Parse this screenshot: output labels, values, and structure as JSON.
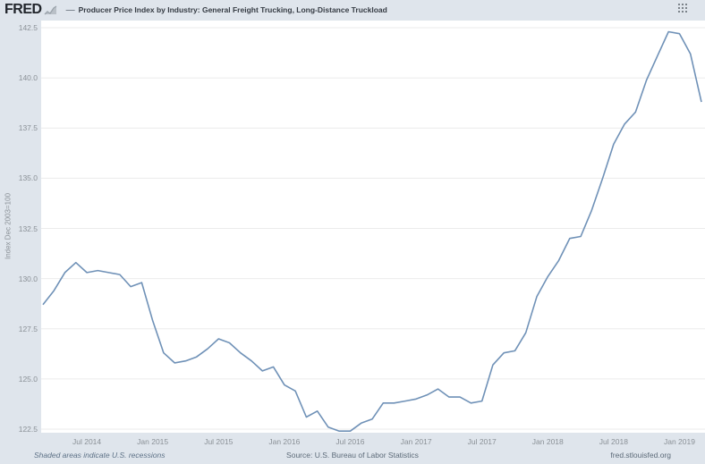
{
  "header": {
    "logo": "FRED",
    "legend_dash": "—",
    "series_title": "Producer Price Index by Industry: General Freight Trucking, Long-Distance Truckload"
  },
  "footer": {
    "recession_note": "Shaded areas indicate U.S. recessions",
    "source": "Source: U.S. Bureau of Labor Statistics",
    "site": "fred.stlouisfed.org"
  },
  "chart_data": {
    "type": "line",
    "title": "Producer Price Index by Industry: General Freight Trucking, Long-Distance Truckload",
    "xlabel": "",
    "ylabel": "Index Dec 2003=100",
    "ylim": [
      122.5,
      142.5
    ],
    "grid": true,
    "legend_position": "top",
    "line_color": "#6f91b7",
    "frequency": "monthly",
    "yticks": [
      {
        "value": 142.5,
        "label": "142.5"
      },
      {
        "value": 140.0,
        "label": "140.0"
      },
      {
        "value": 137.5,
        "label": "137.5"
      },
      {
        "value": 135.0,
        "label": "135.0"
      },
      {
        "value": 132.5,
        "label": "132.5"
      },
      {
        "value": 130.0,
        "label": "130.0"
      },
      {
        "value": 127.5,
        "label": "127.5"
      },
      {
        "value": 125.0,
        "label": "125.0"
      },
      {
        "value": 122.5,
        "label": "122.5"
      }
    ],
    "xticks": [
      {
        "index": 4,
        "label": "Jul 2014"
      },
      {
        "index": 10,
        "label": "Jan 2015"
      },
      {
        "index": 16,
        "label": "Jul 2015"
      },
      {
        "index": 22,
        "label": "Jan 2016"
      },
      {
        "index": 28,
        "label": "Jul 2016"
      },
      {
        "index": 34,
        "label": "Jan 2017"
      },
      {
        "index": 40,
        "label": "Jul 2017"
      },
      {
        "index": 46,
        "label": "Jan 2018"
      },
      {
        "index": 52,
        "label": "Jul 2018"
      },
      {
        "index": 58,
        "label": "Jan 2019"
      }
    ],
    "x": [
      "2014-03",
      "2014-04",
      "2014-05",
      "2014-06",
      "2014-07",
      "2014-08",
      "2014-09",
      "2014-10",
      "2014-11",
      "2014-12",
      "2015-01",
      "2015-02",
      "2015-03",
      "2015-04",
      "2015-05",
      "2015-06",
      "2015-07",
      "2015-08",
      "2015-09",
      "2015-10",
      "2015-11",
      "2015-12",
      "2016-01",
      "2016-02",
      "2016-03",
      "2016-04",
      "2016-05",
      "2016-06",
      "2016-07",
      "2016-08",
      "2016-09",
      "2016-10",
      "2016-11",
      "2016-12",
      "2017-01",
      "2017-02",
      "2017-03",
      "2017-04",
      "2017-05",
      "2017-06",
      "2017-07",
      "2017-08",
      "2017-09",
      "2017-10",
      "2017-11",
      "2017-12",
      "2018-01",
      "2018-02",
      "2018-03",
      "2018-04",
      "2018-05",
      "2018-06",
      "2018-07",
      "2018-08",
      "2018-09",
      "2018-10",
      "2018-11",
      "2018-12",
      "2019-01",
      "2019-02",
      "2019-03"
    ],
    "series": [
      {
        "name": "Producer Price Index by Industry: General Freight Trucking, Long-Distance Truckload",
        "values": [
          128.7,
          129.4,
          130.3,
          130.8,
          130.3,
          130.4,
          130.3,
          130.2,
          129.6,
          129.8,
          127.9,
          126.3,
          125.8,
          125.9,
          126.1,
          126.5,
          127.0,
          126.8,
          126.3,
          125.9,
          125.4,
          125.6,
          124.7,
          124.4,
          123.1,
          123.4,
          122.6,
          122.4,
          122.4,
          122.8,
          123.0,
          123.8,
          123.8,
          123.9,
          124.0,
          124.2,
          124.5,
          124.1,
          124.1,
          123.8,
          123.9,
          125.7,
          126.3,
          126.4,
          127.3,
          129.1,
          130.1,
          130.9,
          132.0,
          132.1,
          133.4,
          135.0,
          136.7,
          137.7,
          138.3,
          139.9,
          141.1,
          142.3,
          142.2,
          141.2,
          138.8
        ]
      }
    ]
  }
}
